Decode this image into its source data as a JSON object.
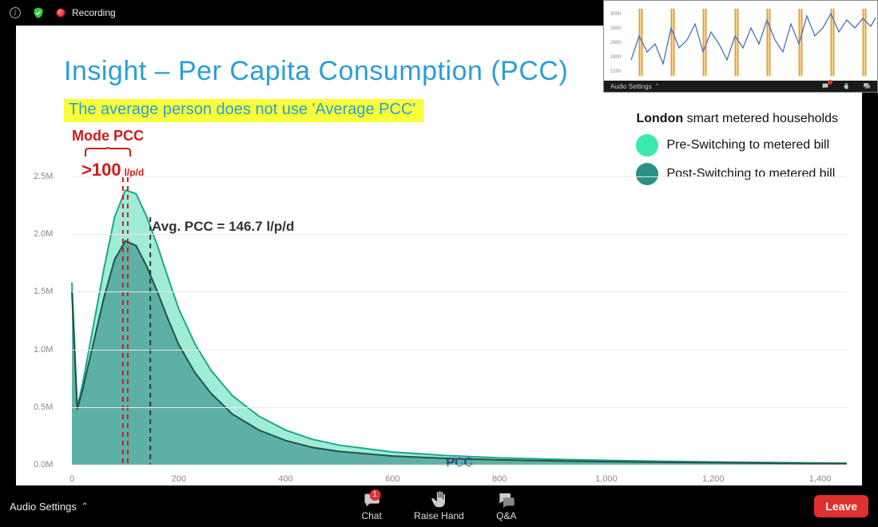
{
  "topbar": {
    "recording_label": "Recording"
  },
  "slide": {
    "title": "Insight – Per Capita Consumption (PCC)",
    "subtitle": "The average person does not use 'Average PCC'",
    "mode_label": "Mode PCC",
    "mode_value": ">100",
    "mode_unit": "l/p/d",
    "avg_label": "Avg. PCC = 146.7 l/p/d",
    "xaxis_label": "PCC"
  },
  "legend": {
    "title_bold": "London",
    "title_rest": " smart metered households",
    "items": [
      {
        "label": "Pre-Switching to metered bill",
        "color": "#3be8b0"
      },
      {
        "label": "Post-Switching to metered bill",
        "color": "#2a8f84"
      }
    ]
  },
  "chart": {
    "type": "area",
    "background_color": "#ffffff",
    "grid_color": "#eaeaea",
    "axis_color": "#bbbbbb",
    "xlim": [
      0,
      1450
    ],
    "ylim": [
      0,
      2700000
    ],
    "yticks": [
      {
        "v": 0,
        "label": "0.0M"
      },
      {
        "v": 500000,
        "label": "0.5M"
      },
      {
        "v": 1000000,
        "label": "1.0M"
      },
      {
        "v": 1500000,
        "label": "1.5M"
      },
      {
        "v": 2000000,
        "label": "2.0M"
      },
      {
        "v": 2500000,
        "label": "2.5M"
      }
    ],
    "xticks": [
      {
        "v": 0,
        "label": "0"
      },
      {
        "v": 200,
        "label": "200"
      },
      {
        "v": 400,
        "label": "400"
      },
      {
        "v": 600,
        "label": "600"
      },
      {
        "v": 800,
        "label": "800"
      },
      {
        "v": 1000,
        "label": "1,000"
      },
      {
        "v": 1200,
        "label": "1,200"
      },
      {
        "v": 1400,
        "label": "1,400"
      }
    ],
    "mode_line_x": 100,
    "mode_line_color": "#d11919",
    "avg_line_x": 146.7,
    "avg_line_color": "#333333",
    "series": [
      {
        "name": "Pre-Switching to metered bill",
        "fill": "#7fe6c9",
        "fill_opacity": 0.75,
        "stroke": "#1aa88a",
        "stroke_width": 2,
        "points": [
          [
            0,
            1580000
          ],
          [
            10,
            500000
          ],
          [
            20,
            700000
          ],
          [
            40,
            1200000
          ],
          [
            60,
            1700000
          ],
          [
            80,
            2150000
          ],
          [
            100,
            2380000
          ],
          [
            120,
            2350000
          ],
          [
            140,
            2150000
          ],
          [
            160,
            1900000
          ],
          [
            180,
            1620000
          ],
          [
            200,
            1350000
          ],
          [
            230,
            1050000
          ],
          [
            260,
            820000
          ],
          [
            300,
            600000
          ],
          [
            350,
            420000
          ],
          [
            400,
            300000
          ],
          [
            450,
            220000
          ],
          [
            500,
            170000
          ],
          [
            600,
            110000
          ],
          [
            700,
            80000
          ],
          [
            800,
            60000
          ],
          [
            900,
            48000
          ],
          [
            1000,
            38000
          ],
          [
            1100,
            30000
          ],
          [
            1200,
            24000
          ],
          [
            1300,
            19000
          ],
          [
            1400,
            15000
          ],
          [
            1450,
            13000
          ]
        ]
      },
      {
        "name": "Post-Switching to metered bill",
        "fill": "#3a918a",
        "fill_opacity": 0.65,
        "stroke": "#23504d",
        "stroke_width": 2,
        "points": [
          [
            0,
            1500000
          ],
          [
            10,
            480000
          ],
          [
            20,
            650000
          ],
          [
            40,
            1050000
          ],
          [
            60,
            1450000
          ],
          [
            80,
            1780000
          ],
          [
            100,
            1940000
          ],
          [
            120,
            1900000
          ],
          [
            140,
            1720000
          ],
          [
            160,
            1500000
          ],
          [
            180,
            1260000
          ],
          [
            200,
            1040000
          ],
          [
            230,
            800000
          ],
          [
            260,
            620000
          ],
          [
            300,
            440000
          ],
          [
            350,
            300000
          ],
          [
            400,
            210000
          ],
          [
            450,
            150000
          ],
          [
            500,
            115000
          ],
          [
            600,
            75000
          ],
          [
            700,
            55000
          ],
          [
            800,
            42000
          ],
          [
            900,
            34000
          ],
          [
            1000,
            27000
          ],
          [
            1100,
            22000
          ],
          [
            1200,
            18000
          ],
          [
            1300,
            14000
          ],
          [
            1400,
            11000
          ],
          [
            1450,
            10000
          ]
        ]
      }
    ]
  },
  "pip": {
    "line_color": "#4a6fc8",
    "bar_color": "#e89b2e",
    "y_labels": [
      "2200",
      "2400",
      "2600",
      "2800",
      "3000"
    ],
    "vbar_x": [
      20,
      60,
      100,
      140,
      180,
      220,
      260,
      300
    ],
    "line_points": [
      [
        8,
        70
      ],
      [
        18,
        40
      ],
      [
        28,
        60
      ],
      [
        38,
        50
      ],
      [
        48,
        75
      ],
      [
        58,
        30
      ],
      [
        68,
        55
      ],
      [
        78,
        45
      ],
      [
        88,
        25
      ],
      [
        98,
        60
      ],
      [
        108,
        35
      ],
      [
        118,
        50
      ],
      [
        128,
        70
      ],
      [
        138,
        40
      ],
      [
        148,
        55
      ],
      [
        158,
        30
      ],
      [
        168,
        50
      ],
      [
        178,
        20
      ],
      [
        188,
        45
      ],
      [
        198,
        60
      ],
      [
        208,
        25
      ],
      [
        218,
        50
      ],
      [
        228,
        15
      ],
      [
        238,
        40
      ],
      [
        248,
        30
      ],
      [
        258,
        12
      ],
      [
        268,
        35
      ],
      [
        278,
        20
      ],
      [
        288,
        30
      ],
      [
        298,
        18
      ],
      [
        308,
        28
      ],
      [
        318,
        10
      ],
      [
        328,
        22
      ]
    ],
    "toolbar": {
      "audio_label": "Audio Settings",
      "chat_label": "Chat",
      "raise_label": "Raise Hand",
      "qa_label": "Q&A"
    }
  },
  "toolbar": {
    "audio_label": "Audio Settings",
    "chat_label": "Chat",
    "chat_badge": "1",
    "raise_label": "Raise Hand",
    "qa_label": "Q&A",
    "leave_label": "Leave"
  }
}
